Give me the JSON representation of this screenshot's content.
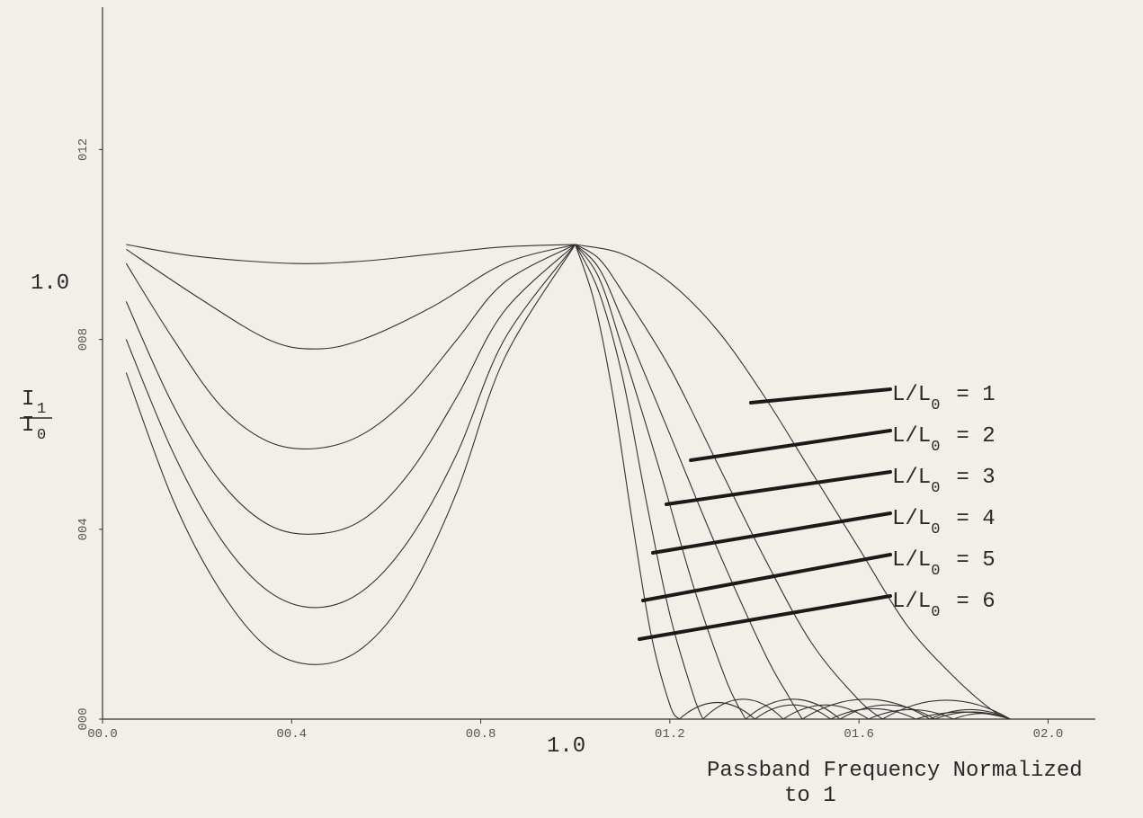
{
  "chart_data": {
    "type": "line",
    "x_ticks": [
      "00.0",
      "00.4",
      "00.8",
      "01.2",
      "01.6",
      "02.0"
    ],
    "y_ticks": [
      "000",
      "004",
      "008",
      "012"
    ],
    "x_tick_values": [
      0.0,
      0.4,
      0.8,
      1.2,
      1.6,
      2.0
    ],
    "y_tick_values": [
      0.0,
      0.4,
      0.8,
      1.2
    ],
    "xlabel_marker": "1.0",
    "ylabel_marker": "1.0",
    "ylabel_top": "I",
    "ylabel_top_sub": "1",
    "ylabel_bottom": "I",
    "ylabel_bottom_sub": "0",
    "xlabel_line1": "Passband Frequency Normalized",
    "xlabel_line2": "to 1",
    "xlim": [
      0.0,
      2.1
    ],
    "ylim": [
      0.0,
      1.5
    ],
    "grid": false,
    "series": [
      {
        "name": "L/L0 = 1",
        "legend_prefix": "L/L",
        "legend_sub": "0",
        "legend_suffix": "= 1",
        "pass": [
          [
            0.05,
            1.0
          ],
          [
            0.2,
            0.975
          ],
          [
            0.4,
            0.96
          ],
          [
            0.55,
            0.965
          ],
          [
            0.7,
            0.98
          ],
          [
            0.85,
            0.995
          ],
          [
            1.0,
            1.0
          ]
        ],
        "stop": [
          [
            1.0,
            1.0
          ],
          [
            1.1,
            0.98
          ],
          [
            1.2,
            0.92
          ],
          [
            1.3,
            0.82
          ],
          [
            1.4,
            0.68
          ],
          [
            1.5,
            0.52
          ],
          [
            1.6,
            0.36
          ],
          [
            1.7,
            0.2
          ],
          [
            1.8,
            0.09
          ],
          [
            1.88,
            0.02
          ],
          [
            1.92,
            0.0
          ]
        ],
        "ripples": []
      },
      {
        "name": "L/L0 = 2",
        "legend_prefix": "L/L",
        "legend_sub": "0",
        "legend_suffix": "= 2",
        "pass": [
          [
            0.05,
            0.99
          ],
          [
            0.2,
            0.89
          ],
          [
            0.35,
            0.8
          ],
          [
            0.45,
            0.78
          ],
          [
            0.55,
            0.8
          ],
          [
            0.7,
            0.87
          ],
          [
            0.85,
            0.96
          ],
          [
            1.0,
            1.0
          ]
        ],
        "stop": [
          [
            1.0,
            1.0
          ],
          [
            1.05,
            0.97
          ],
          [
            1.1,
            0.9
          ],
          [
            1.2,
            0.74
          ],
          [
            1.3,
            0.54
          ],
          [
            1.4,
            0.34
          ],
          [
            1.5,
            0.16
          ],
          [
            1.6,
            0.04
          ],
          [
            1.65,
            0.0
          ]
        ],
        "ripples": [
          [
            1.65,
            1.92,
            0.04
          ]
        ]
      },
      {
        "name": "L/L0 = 3",
        "legend_prefix": "L/L",
        "legend_sub": "0",
        "legend_suffix": "= 3",
        "pass": [
          [
            0.05,
            0.96
          ],
          [
            0.15,
            0.8
          ],
          [
            0.25,
            0.66
          ],
          [
            0.35,
            0.585
          ],
          [
            0.45,
            0.57
          ],
          [
            0.55,
            0.6
          ],
          [
            0.65,
            0.68
          ],
          [
            0.75,
            0.8
          ],
          [
            0.85,
            0.92
          ],
          [
            1.0,
            1.0
          ]
        ],
        "stop": [
          [
            1.0,
            1.0
          ],
          [
            1.05,
            0.95
          ],
          [
            1.1,
            0.84
          ],
          [
            1.2,
            0.6
          ],
          [
            1.3,
            0.36
          ],
          [
            1.4,
            0.14
          ],
          [
            1.45,
            0.05
          ],
          [
            1.48,
            0.0
          ]
        ],
        "ripples": [
          [
            1.48,
            1.75,
            0.042
          ],
          [
            1.75,
            1.92,
            0.02
          ]
        ]
      },
      {
        "name": "L/L0 = 4",
        "legend_prefix": "L/L",
        "legend_sub": "0",
        "legend_suffix": "= 4",
        "pass": [
          [
            0.05,
            0.88
          ],
          [
            0.15,
            0.66
          ],
          [
            0.25,
            0.5
          ],
          [
            0.35,
            0.41
          ],
          [
            0.45,
            0.39
          ],
          [
            0.55,
            0.42
          ],
          [
            0.65,
            0.52
          ],
          [
            0.75,
            0.68
          ],
          [
            0.85,
            0.86
          ],
          [
            1.0,
            1.0
          ]
        ],
        "stop": [
          [
            1.0,
            1.0
          ],
          [
            1.05,
            0.93
          ],
          [
            1.1,
            0.78
          ],
          [
            1.18,
            0.52
          ],
          [
            1.25,
            0.28
          ],
          [
            1.32,
            0.08
          ],
          [
            1.36,
            0.0
          ]
        ],
        "ripples": [
          [
            1.36,
            1.56,
            0.042
          ],
          [
            1.56,
            1.76,
            0.03
          ],
          [
            1.76,
            1.92,
            0.015
          ]
        ]
      },
      {
        "name": "L/L0 = 5",
        "legend_prefix": "L/L",
        "legend_sub": "0",
        "legend_suffix": "= 5",
        "pass": [
          [
            0.05,
            0.8
          ],
          [
            0.15,
            0.56
          ],
          [
            0.25,
            0.38
          ],
          [
            0.35,
            0.27
          ],
          [
            0.45,
            0.235
          ],
          [
            0.55,
            0.27
          ],
          [
            0.65,
            0.38
          ],
          [
            0.75,
            0.56
          ],
          [
            0.85,
            0.8
          ],
          [
            1.0,
            1.0
          ]
        ],
        "stop": [
          [
            1.0,
            1.0
          ],
          [
            1.05,
            0.9
          ],
          [
            1.1,
            0.72
          ],
          [
            1.15,
            0.46
          ],
          [
            1.2,
            0.22
          ],
          [
            1.25,
            0.05
          ],
          [
            1.27,
            0.0
          ]
        ],
        "ripples": [
          [
            1.27,
            1.44,
            0.042
          ],
          [
            1.44,
            1.62,
            0.03
          ],
          [
            1.62,
            1.8,
            0.02
          ],
          [
            1.8,
            1.92,
            0.012
          ]
        ]
      },
      {
        "name": "L/L0 = 6",
        "legend_prefix": "L/L",
        "legend_sub": "0",
        "legend_suffix": "= 6",
        "pass": [
          [
            0.05,
            0.73
          ],
          [
            0.15,
            0.46
          ],
          [
            0.25,
            0.27
          ],
          [
            0.35,
            0.15
          ],
          [
            0.45,
            0.115
          ],
          [
            0.55,
            0.15
          ],
          [
            0.65,
            0.27
          ],
          [
            0.75,
            0.48
          ],
          [
            0.85,
            0.76
          ],
          [
            1.0,
            1.0
          ]
        ],
        "stop": [
          [
            1.0,
            1.0
          ],
          [
            1.04,
            0.88
          ],
          [
            1.08,
            0.68
          ],
          [
            1.12,
            0.42
          ],
          [
            1.16,
            0.18
          ],
          [
            1.2,
            0.03
          ],
          [
            1.22,
            0.0
          ]
        ],
        "ripples": [
          [
            1.22,
            1.38,
            0.035
          ],
          [
            1.38,
            1.54,
            0.03
          ],
          [
            1.54,
            1.72,
            0.022
          ],
          [
            1.72,
            1.92,
            0.015
          ]
        ]
      }
    ]
  }
}
